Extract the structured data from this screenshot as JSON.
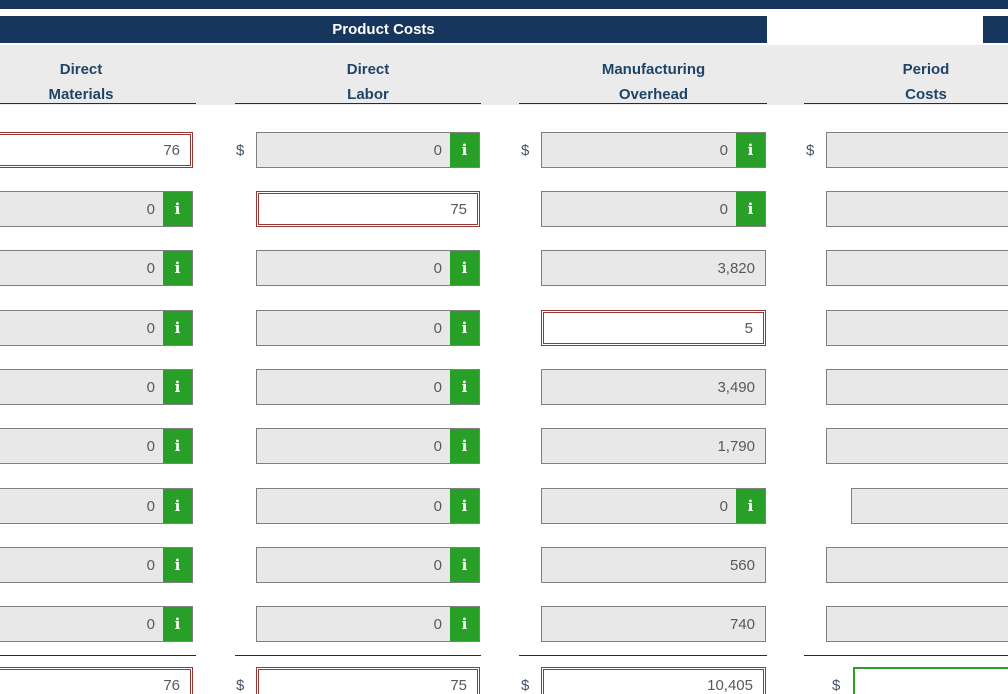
{
  "colors": {
    "navy": "#17365d",
    "green": "#28a028",
    "maroon_active_border": "#953735",
    "cell_gray": "#e8e8e8",
    "value_text": "#595959"
  },
  "header": {
    "group_label": "Product Costs",
    "columns": [
      {
        "id": "direct-materials",
        "line1": "Direct",
        "line2": "Materials"
      },
      {
        "id": "direct-labor",
        "line1": "Direct",
        "line2": "Labor"
      },
      {
        "id": "manufacturing-overhead",
        "line1": "Manufacturing",
        "line2": "Overhead"
      },
      {
        "id": "period-costs",
        "line1": "Period",
        "line2": "Costs"
      }
    ]
  },
  "currency": "$",
  "info_icon": "i",
  "rows": [
    {
      "dm": "76",
      "dl": "0",
      "mo": "0",
      "pc": ""
    },
    {
      "dm": "0",
      "dl": "75",
      "mo": "0",
      "pc": ""
    },
    {
      "dm": "0",
      "dl": "0",
      "mo": "3,820",
      "pc": ""
    },
    {
      "dm": "0",
      "dl": "0",
      "mo": "5",
      "pc": ""
    },
    {
      "dm": "0",
      "dl": "0",
      "mo": "3,490",
      "pc": ""
    },
    {
      "dm": "0",
      "dl": "0",
      "mo": "1,790",
      "pc": ""
    },
    {
      "dm": "0",
      "dl": "0",
      "mo": "0",
      "pc": ""
    },
    {
      "dm": "0",
      "dl": "0",
      "mo": "560",
      "pc": ""
    },
    {
      "dm": "0",
      "dl": "0",
      "mo": "740",
      "pc": ""
    }
  ],
  "totals": {
    "dm": "76",
    "dl": "75",
    "mo": "10,405",
    "pc": ""
  }
}
